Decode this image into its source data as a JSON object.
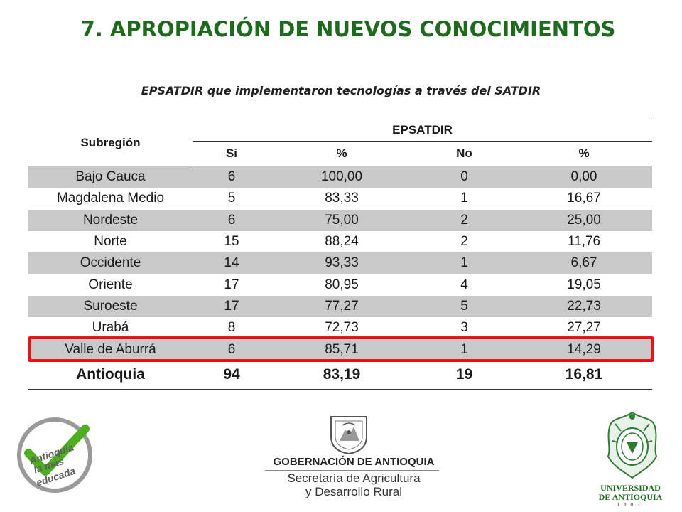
{
  "title": "7. APROPIACIÓN DE NUEVOS CONOCIMIENTOS",
  "subtitle": "EPSATDIR que implementaron tecnologías a través del SATDIR",
  "table": {
    "header_region": "Subregión",
    "header_group": "EPSATDIR",
    "subheaders": [
      "Si",
      "%",
      "No",
      "%"
    ],
    "rows": [
      {
        "region": "Bajo Cauca",
        "si": "6",
        "pct_si": "100,00",
        "no": "0",
        "pct_no": "0,00"
      },
      {
        "region": "Magdalena Medio",
        "si": "5",
        "pct_si": "83,33",
        "no": "1",
        "pct_no": "16,67"
      },
      {
        "region": "Nordeste",
        "si": "6",
        "pct_si": "75,00",
        "no": "2",
        "pct_no": "25,00"
      },
      {
        "region": "Norte",
        "si": "15",
        "pct_si": "88,24",
        "no": "2",
        "pct_no": "11,76"
      },
      {
        "region": "Occidente",
        "si": "14",
        "pct_si": "93,33",
        "no": "1",
        "pct_no": "6,67"
      },
      {
        "region": "Oriente",
        "si": "17",
        "pct_si": "80,95",
        "no": "4",
        "pct_no": "19,05"
      },
      {
        "region": "Suroeste",
        "si": "17",
        "pct_si": "77,27",
        "no": "5",
        "pct_no": "22,73"
      },
      {
        "region": "Urabá",
        "si": "8",
        "pct_si": "72,73",
        "no": "3",
        "pct_no": "27,27"
      },
      {
        "region": "Valle de Aburrá",
        "si": "6",
        "pct_si": "85,71",
        "no": "1",
        "pct_no": "14,29"
      }
    ],
    "total": {
      "region": "Antioquia",
      "si": "94",
      "pct_si": "83,19",
      "no": "19",
      "pct_no": "16,81"
    }
  },
  "logos": {
    "left_badge": [
      "Antioquia",
      "la más",
      "educada"
    ],
    "gov_name": "GOBERNACIÓN DE ANTIOQUIA",
    "gov_secretaria_1": "Secretaría de Agricultura",
    "gov_secretaria_2": "y Desarrollo Rural",
    "udea_1": "UNIVERSIDAD",
    "udea_2": "DE ANTIOQUIA",
    "udea_year": "1803"
  },
  "colors": {
    "title_green": "#1e6b1e",
    "row_shade": "#c9c9c9",
    "highlight_red": "#e8141b"
  }
}
